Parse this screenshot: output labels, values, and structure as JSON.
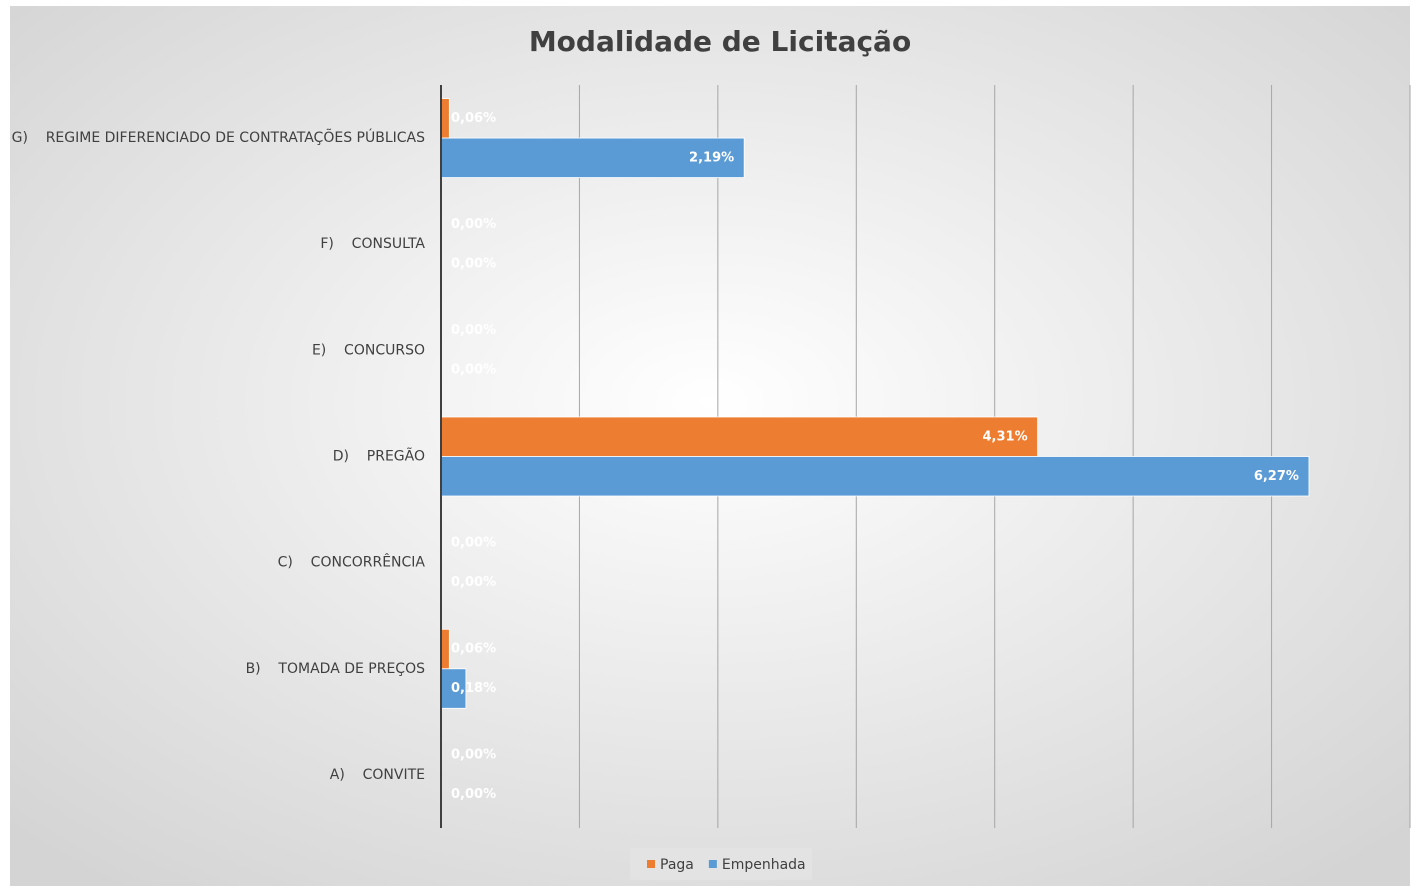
{
  "chart_data": {
    "type": "hbar",
    "title": "Modalidade de Licitação",
    "categories": [
      "A)    CONVITE",
      "B)    TOMADA DE PREÇOS",
      "C)    CONCORRÊNCIA",
      "D)    PREGÃO",
      "E)    CONCURSO",
      "F)    CONSULTA",
      "G)    REGIME DIFERENCIADO DE CONTRATAÇÕES PÚBLICAS"
    ],
    "series": [
      {
        "name": "Paga",
        "color": "#ed7d31",
        "values": [
          0,
          0.06,
          0,
          4.31,
          0,
          0,
          0.06
        ],
        "value_labels": [
          "0,00%",
          "0,06%",
          "0,00%",
          "4,31%",
          "0,00%",
          "0,00%",
          "0,06%"
        ]
      },
      {
        "name": "Empenhada",
        "color": "#5b9bd5",
        "values": [
          0,
          0.18,
          0,
          6.27,
          0,
          0,
          2.19
        ],
        "value_labels": [
          "0,00%",
          "0,18%",
          "0,00%",
          "6,27%",
          "0,00%",
          "0,00%",
          "2,19%"
        ]
      }
    ],
    "xlim": [
      0,
      7
    ],
    "xticks": [
      0,
      1,
      2,
      3,
      4,
      5,
      6,
      7
    ],
    "grid": true,
    "legend": "bottom"
  }
}
